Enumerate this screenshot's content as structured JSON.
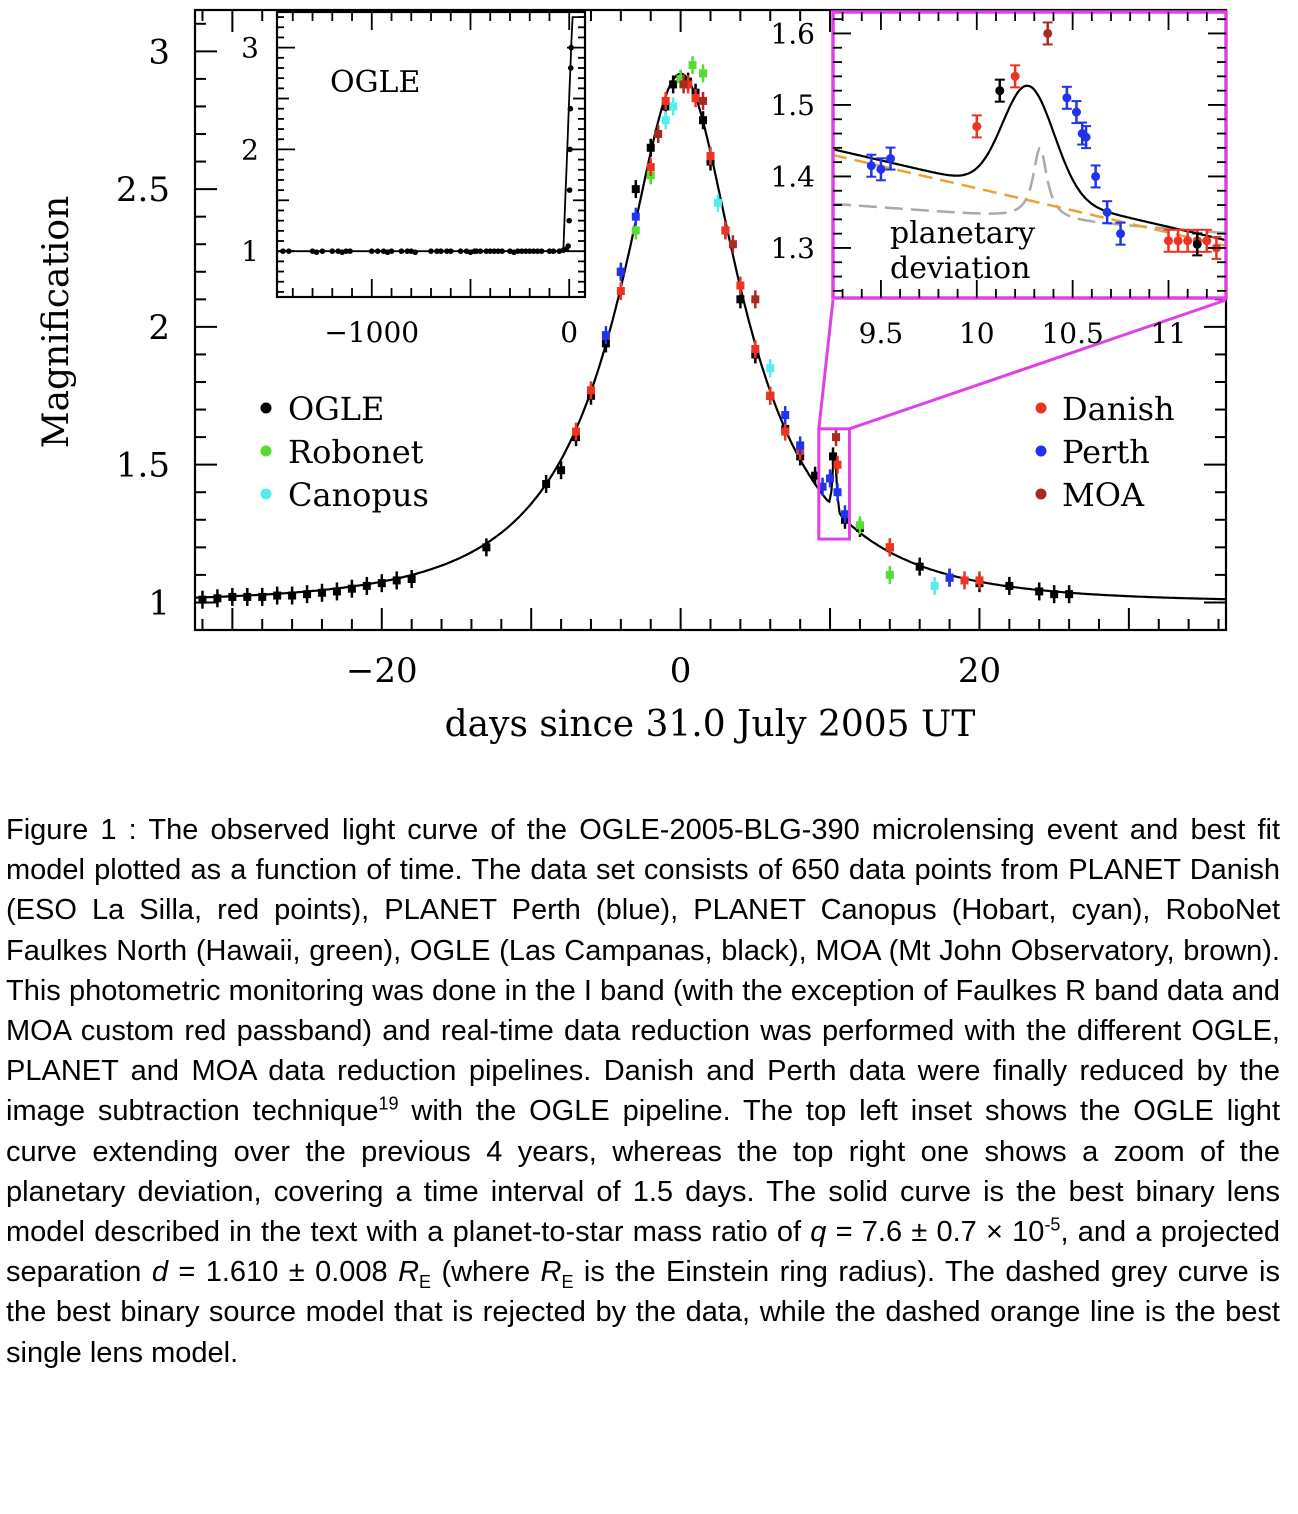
{
  "figure": {
    "main": {
      "ylabel": "Magnification",
      "xlabel": "days since 31.0 July 2005 UT",
      "xticks": [
        "−20",
        "0",
        "20"
      ],
      "yticks": [
        "1",
        "1.5",
        "2",
        "2.5",
        "3"
      ]
    },
    "inset_left": {
      "title": "OGLE",
      "xticks": [
        "−1000",
        "0"
      ],
      "yticks": [
        "1",
        "2",
        "3"
      ]
    },
    "inset_right": {
      "annotation_line1": "planetary",
      "annotation_line2": "deviation",
      "xticks": [
        "9.5",
        "10",
        "10.5",
        "11"
      ],
      "yticks": [
        "1.3",
        "1.4",
        "1.5",
        "1.6"
      ]
    },
    "legend_left": [
      {
        "label": "OGLE",
        "color": "#000000"
      },
      {
        "label": "Robonet",
        "color": "#55dd33"
      },
      {
        "label": "Canopus",
        "color": "#55eeee"
      }
    ],
    "legend_right": [
      {
        "label": "Danish",
        "color": "#ee3322"
      },
      {
        "label": "Perth",
        "color": "#2233ee"
      },
      {
        "label": "MOA",
        "color": "#aa2a22"
      }
    ],
    "colors": {
      "highlight": "#e040e8",
      "fit_curve": "#000000",
      "binary_source_curve": "#aaaaaa",
      "single_lens_curve": "#f0a030"
    }
  },
  "chart_data": [
    {
      "panel": "main",
      "type": "scatter",
      "xlabel": "days since 31.0 July 2005 UT",
      "ylabel": "Magnification",
      "xlim": [
        -32.5,
        36.5
      ],
      "ylim": [
        0.9,
        3.15
      ],
      "series": [
        {
          "name": "OGLE",
          "color": "#000000",
          "x": [
            -32,
            -31,
            -30,
            -29,
            -28,
            -27,
            -26,
            -25,
            -24,
            -23,
            -22,
            -21,
            -20,
            -19,
            -18,
            -13,
            -9,
            -8,
            -7,
            -6,
            -5,
            -4,
            -3,
            -2,
            -1,
            -0.5,
            0,
            0.5,
            1,
            1.5,
            2,
            3,
            4,
            5,
            6,
            7,
            8,
            9,
            10.2,
            11,
            12,
            14,
            16,
            18,
            20,
            22,
            24,
            25,
            26
          ],
          "y": [
            1.01,
            1.015,
            1.02,
            1.02,
            1.02,
            1.025,
            1.025,
            1.03,
            1.035,
            1.04,
            1.05,
            1.06,
            1.07,
            1.08,
            1.085,
            1.2,
            1.43,
            1.48,
            1.6,
            1.75,
            1.94,
            2.2,
            2.5,
            2.65,
            2.8,
            2.88,
            2.9,
            2.89,
            2.85,
            2.75,
            2.6,
            2.35,
            2.1,
            1.9,
            1.75,
            1.63,
            1.53,
            1.46,
            1.53,
            1.3,
            1.27,
            1.2,
            1.13,
            1.09,
            1.07,
            1.06,
            1.04,
            1.03,
            1.03
          ]
        },
        {
          "name": "Robonet",
          "color": "#55dd33",
          "x": [
            -3,
            -2,
            0,
            0.8,
            1.5,
            12,
            14
          ],
          "y": [
            2.35,
            2.55,
            2.9,
            2.95,
            2.92,
            1.28,
            1.1
          ]
        },
        {
          "name": "Canopus",
          "color": "#55eeee",
          "x": [
            -1,
            -0.5,
            2.5,
            6,
            17
          ],
          "y": [
            2.75,
            2.8,
            2.45,
            1.85,
            1.06
          ]
        },
        {
          "name": "Danish",
          "color": "#ee3322",
          "x": [
            -7,
            -6,
            -4,
            -2,
            -1,
            0.5,
            1,
            2,
            3,
            4,
            5,
            6,
            7,
            8,
            10.5,
            14,
            18,
            19,
            20
          ],
          "y": [
            1.62,
            1.77,
            2.13,
            2.58,
            2.82,
            2.88,
            2.83,
            2.62,
            2.35,
            2.15,
            1.92,
            1.75,
            1.62,
            1.55,
            1.5,
            1.2,
            1.09,
            1.08,
            1.08
          ]
        },
        {
          "name": "Perth",
          "color": "#2233ee",
          "x": [
            -5,
            -4,
            -3,
            7,
            8,
            9.5,
            10,
            10.5,
            11,
            18
          ],
          "y": [
            1.97,
            2.2,
            2.4,
            1.68,
            1.57,
            1.42,
            1.45,
            1.4,
            1.32,
            1.09
          ]
        },
        {
          "name": "MOA",
          "color": "#aa2a22",
          "x": [
            -1.5,
            0.2,
            1.5,
            3.5,
            5,
            10.4
          ],
          "y": [
            2.7,
            2.88,
            2.82,
            2.3,
            2.1,
            1.6
          ]
        }
      ]
    },
    {
      "panel": "inset_left",
      "type": "scatter",
      "title": "OGLE",
      "xlim": [
        -1480,
        80
      ],
      "ylim": [
        0.55,
        3.35
      ],
      "series": [
        {
          "name": "OGLE",
          "color": "#000000",
          "x": [
            -1450,
            -1420,
            -1300,
            -1280,
            -1250,
            -1200,
            -1170,
            -1150,
            -1130,
            -1110,
            -1000,
            -970,
            -940,
            -920,
            -900,
            -850,
            -820,
            -800,
            -780,
            -700,
            -670,
            -650,
            -620,
            -600,
            -550,
            -520,
            -500,
            -480,
            -470,
            -450,
            -420,
            -400,
            -380,
            -360,
            -340,
            -300,
            -280,
            -260,
            -240,
            -220,
            -200,
            -180,
            -160,
            -140,
            -100,
            -80,
            -50,
            -30,
            -15,
            -5,
            0,
            2,
            4,
            6,
            8,
            10
          ],
          "y": [
            1.0,
            1.0,
            1.0,
            0.99,
            1.0,
            1.0,
            1.0,
            0.99,
            1.0,
            1.0,
            1.0,
            1.0,
            1.0,
            0.99,
            1.0,
            1.0,
            1.0,
            1.0,
            0.99,
            1.0,
            1.0,
            1.0,
            1.0,
            1.0,
            1.0,
            1.0,
            0.99,
            1.0,
            1.0,
            1.0,
            1.0,
            1.0,
            1.0,
            1.0,
            1.0,
            1.0,
            0.99,
            1.0,
            1.0,
            1.0,
            1.0,
            1.0,
            1.0,
            1.0,
            1.0,
            1.0,
            1.0,
            1.01,
            1.02,
            1.05,
            1.3,
            1.6,
            2.0,
            2.4,
            2.8,
            3.0
          ]
        }
      ]
    },
    {
      "panel": "inset_right",
      "type": "scatter",
      "annotation": "planetary deviation",
      "xlim": [
        9.25,
        11.3
      ],
      "ylim": [
        1.23,
        1.63
      ],
      "series": [
        {
          "name": "Perth",
          "color": "#2233ee",
          "x": [
            9.45,
            9.5,
            9.55,
            10.47,
            10.52,
            10.55,
            10.57,
            10.62,
            10.68,
            10.75
          ],
          "y": [
            1.415,
            1.41,
            1.425,
            1.51,
            1.49,
            1.46,
            1.455,
            1.4,
            1.35,
            1.32
          ]
        },
        {
          "name": "Danish",
          "color": "#ee3322",
          "x": [
            10.0,
            10.2,
            11.0,
            11.05,
            11.1,
            11.15,
            11.2,
            11.25
          ],
          "y": [
            1.47,
            1.54,
            1.31,
            1.31,
            1.31,
            1.31,
            1.31,
            1.3
          ]
        },
        {
          "name": "OGLE",
          "color": "#000000",
          "x": [
            10.12,
            11.15
          ],
          "y": [
            1.52,
            1.305
          ]
        },
        {
          "name": "MOA",
          "color": "#aa2a22",
          "x": [
            10.37
          ],
          "y": [
            1.6
          ]
        }
      ]
    }
  ],
  "caption": {
    "p1": "Figure 1 : The observed light curve of the OGLE-2005-BLG-390 microlensing event and best fit model plotted as a function of time. The data set consists of 650 data points from PLANET Danish (ESO La Silla, red points), PLANET Perth (blue), PLANET Canopus (Hobart, cyan), RoboNet Faulkes North (Hawaii, green), OGLE (Las Campanas, black), MOA (Mt John Observatory, brown). This photometric monitoring was done in the I band (with the exception of Faulkes R band data and MOA custom red passband) and real-time data reduction was performed with the different OGLE, PLANET and MOA data reduction pipelines. Danish and Perth data were finally reduced by the image subtraction technique",
    "ref": "19",
    "p2": " with the OGLE pipeline. The top left inset shows the OGLE light curve extending over the previous 4 years, whereas the top right one shows a zoom of the planetary deviation, covering a time interval of 1.5 days. The solid curve is the best binary lens model described in the text with a planet-to-star mass ratio of ",
    "q_sym": "q",
    "p3": " = 7.6 ± 0.7 × 10",
    "q_exp": "-5",
    "p4": ", and a projected separation ",
    "d_sym": "d",
    "p5": " = 1.610 ± 0.008 ",
    "re_sym": "R",
    "re_sub": "E",
    "p6": " (where ",
    "re_sym2": "R",
    "re_sub2": "E",
    "p7": " is the Einstein ring radius). The dashed grey curve is the best binary source model that is rejected by the data, while the dashed orange line is the best single lens model."
  }
}
